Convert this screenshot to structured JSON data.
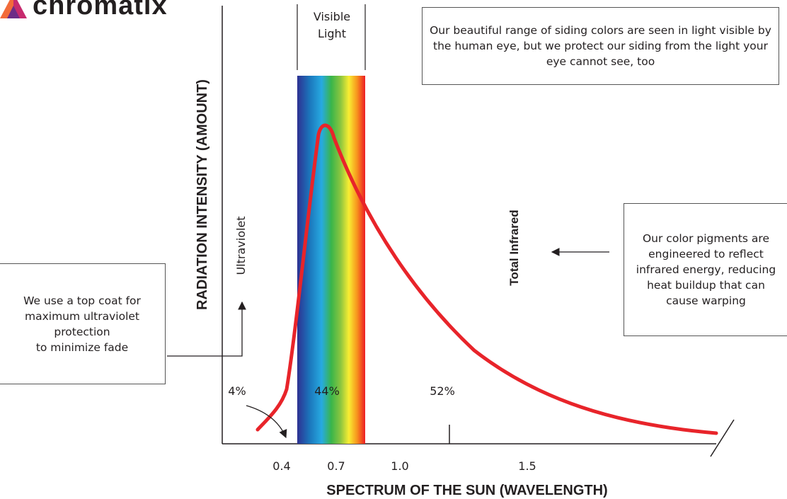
{
  "brand": {
    "name": "chromatix",
    "colors": {
      "orange": "#f26b3a",
      "pink": "#c72b6e",
      "purple": "#6d2c86"
    }
  },
  "header_labels": {
    "visible_light": "Visible\nLight"
  },
  "notes": {
    "visible": "Our beautiful range of siding colors are seen in light visible by the human eye, but we protect our siding from the light your eye cannot see, too",
    "infrared": "Our color pigments are engineered to reflect infrared energy, reducing heat buildup that can cause warping",
    "uv": "We use a top coat for maximum ultraviolet protection\nto minimize fade"
  },
  "region_labels": {
    "ultraviolet": "Ultraviolet",
    "infrared": "Total Infrared"
  },
  "axis": {
    "ylabel": "RADIATION INTENSITY (AMOUNT)",
    "xlabel": "SPECTRUM OF THE SUN (WAVELENGTH)",
    "ticks": [
      "0.4",
      "0.7",
      "1.0",
      "1.5"
    ]
  },
  "percentages": {
    "uv": "4%",
    "visible": "44%",
    "infrared": "52%"
  },
  "colors": {
    "curve": "#e8242a",
    "line": "#231f20"
  }
}
